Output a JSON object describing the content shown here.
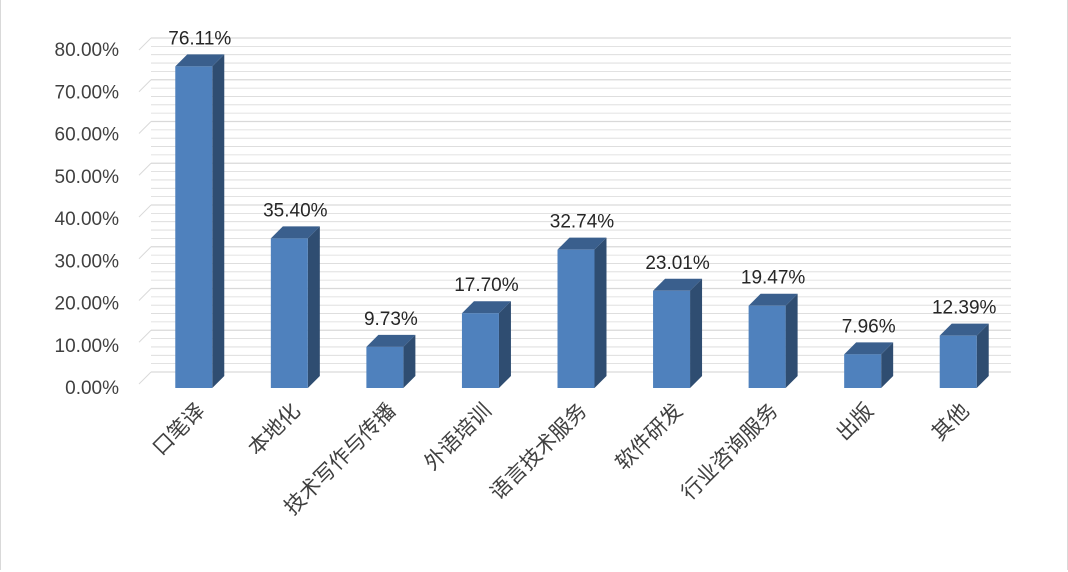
{
  "chart_data": {
    "type": "bar",
    "categories": [
      "口笔译",
      "本地化",
      "技术写作与传播",
      "外语培训",
      "语言技术服务",
      "软件研发",
      "行业咨询服务",
      "出版",
      "其他"
    ],
    "values": [
      76.11,
      35.4,
      9.73,
      17.7,
      32.74,
      23.01,
      19.47,
      7.96,
      12.39
    ],
    "value_labels": [
      "76.11%",
      "35.40%",
      "9.73%",
      "17.70%",
      "32.74%",
      "23.01%",
      "19.47%",
      "7.96%",
      "12.39%"
    ],
    "y_tick_labels": [
      "0.00%",
      "10.00%",
      "20.00%",
      "30.00%",
      "40.00%",
      "50.00%",
      "60.00%",
      "70.00%",
      "80.00%"
    ],
    "ylim": [
      0,
      80
    ],
    "y_step": 10,
    "grid": true,
    "style": "3d-column",
    "colors": {
      "bar_front": "#4f81bd",
      "bar_side": "#2f4d71",
      "bar_top": "#3a5f8d",
      "gridline": "#d9d9d9"
    }
  }
}
